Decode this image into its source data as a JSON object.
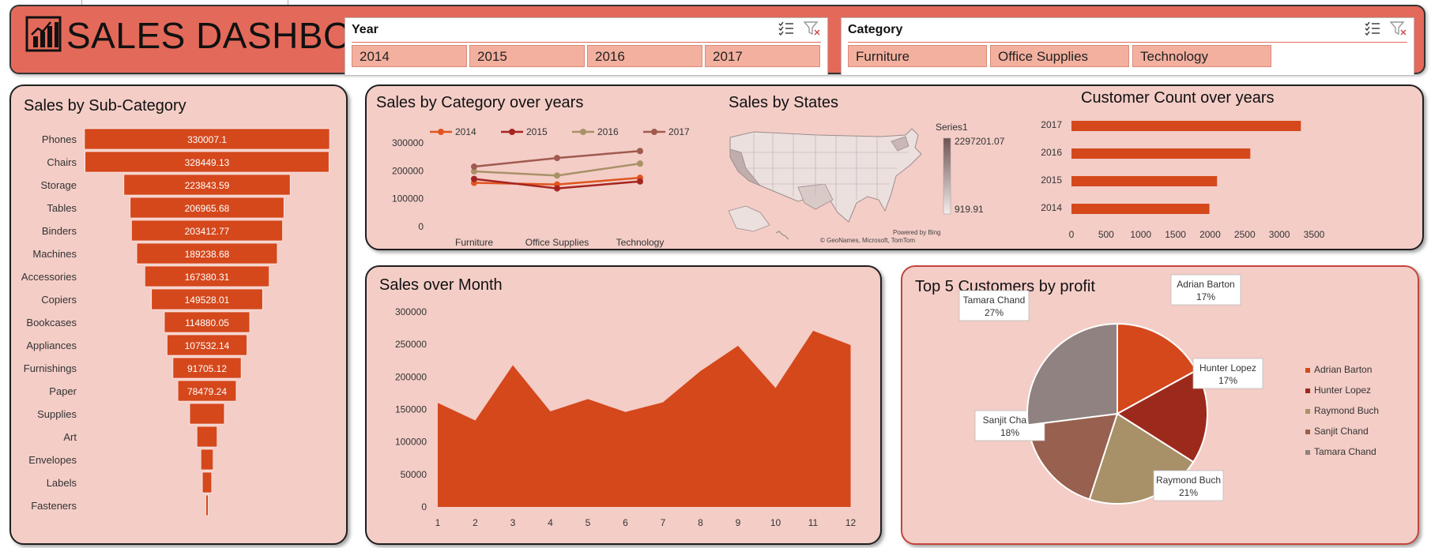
{
  "header": {
    "title": "SALES DASHBOARD"
  },
  "slicers": {
    "year": {
      "label": "Year",
      "items": [
        "2014",
        "2015",
        "2016",
        "2017"
      ]
    },
    "category": {
      "label": "Category",
      "items": [
        "Furniture",
        "Office Supplies",
        "Technology"
      ]
    }
  },
  "colors": {
    "panel_bg": "#f4cdc7",
    "accent": "#d4481c",
    "header_bg": "#e36a5a",
    "slicer_item": "#f4b09f",
    "series_2014": "#e0541f",
    "series_2015": "#a52420",
    "series_2016": "#a89268",
    "series_2017": "#a05a4e"
  },
  "chart_data": [
    {
      "id": "subcat",
      "type": "bar",
      "title": "Sales by Sub-Category",
      "orientation": "horizontal-funnel",
      "categories": [
        "Phones",
        "Chairs",
        "Storage",
        "Tables",
        "Binders",
        "Machines",
        "Accessories",
        "Copiers",
        "Bookcases",
        "Appliances",
        "Furnishings",
        "Paper",
        "Supplies",
        "Art",
        "Envelopes",
        "Labels",
        "Fasteners"
      ],
      "values": [
        330007.1,
        328449.13,
        223843.59,
        206965.68,
        203412.77,
        189238.68,
        167380.31,
        149528.01,
        114880.05,
        107532.14,
        91705.12,
        78479.24,
        46673.54,
        27118.79,
        16476.4,
        12486.31,
        3024.28
      ],
      "data_labels": [
        "330007.1",
        "328449.13",
        "223843.59",
        "206965.68",
        "203412.77",
        "189238.68",
        "167380.31",
        "149528.01",
        "114880.05",
        "107532.14",
        "91705.12",
        "78479.24",
        "",
        "",
        "",
        "",
        ""
      ]
    },
    {
      "id": "catyears",
      "type": "line",
      "title": "Sales by Category over years",
      "categories": [
        "Furniture",
        "Office Supplies",
        "Technology"
      ],
      "series": [
        {
          "name": "2014",
          "values": [
            157000,
            151000,
            175000
          ]
        },
        {
          "name": "2015",
          "values": [
            171000,
            137000,
            162000
          ]
        },
        {
          "name": "2016",
          "values": [
            198000,
            183000,
            226000
          ]
        },
        {
          "name": "2017",
          "values": [
            215000,
            246000,
            271000
          ]
        }
      ],
      "y_ticks": [
        "300000",
        "200000",
        "100000",
        "0"
      ],
      "ylim": [
        0,
        300000
      ]
    },
    {
      "id": "states",
      "type": "heatmap",
      "title": "Sales by States",
      "legend_title": "Series1",
      "legend_max": "2297201.07",
      "legend_min": "919.91",
      "credit_1": "Powered by Bing",
      "credit_2": "© GeoNames, Microsoft, TomTom"
    },
    {
      "id": "custcount",
      "type": "bar",
      "title": "Customer Count over years",
      "orientation": "horizontal",
      "categories": [
        "2017",
        "2016",
        "2015",
        "2014"
      ],
      "values": [
        3310,
        2580,
        2100,
        1990
      ],
      "x_ticks": [
        "0",
        "500",
        "1000",
        "1500",
        "2000",
        "2500",
        "3000",
        "3500"
      ],
      "xlim": [
        0,
        3500
      ]
    },
    {
      "id": "month",
      "type": "area",
      "title": "Sales over Month",
      "x": [
        1,
        2,
        3,
        4,
        5,
        6,
        7,
        8,
        9,
        10,
        11,
        12
      ],
      "values": [
        160000,
        133000,
        218000,
        147000,
        166000,
        146000,
        161000,
        209000,
        248000,
        183000,
        271000,
        249000
      ],
      "x_ticks": [
        "1",
        "2",
        "3",
        "4",
        "5",
        "6",
        "7",
        "8",
        "9",
        "10",
        "11",
        "12"
      ],
      "y_ticks": [
        "300000",
        "250000",
        "200000",
        "150000",
        "100000",
        "50000",
        "0"
      ],
      "ylim": [
        0,
        300000
      ]
    },
    {
      "id": "top5",
      "type": "pie",
      "title": "Top 5 Customers by profit",
      "slices": [
        {
          "name": "Adrian Barton",
          "value": 17,
          "label": "17%"
        },
        {
          "name": "Hunter Lopez",
          "value": 17,
          "label": "17%"
        },
        {
          "name": "Raymond Buch",
          "value": 21,
          "label": "21%"
        },
        {
          "name": "Sanjit Chand",
          "value": 18,
          "label": "18%"
        },
        {
          "name": "Tamara Chand",
          "value": 27,
          "label": "27%"
        }
      ],
      "colors": [
        "#d4481c",
        "#9c2a1c",
        "#a89068",
        "#98604e",
        "#8f8280"
      ]
    }
  ]
}
